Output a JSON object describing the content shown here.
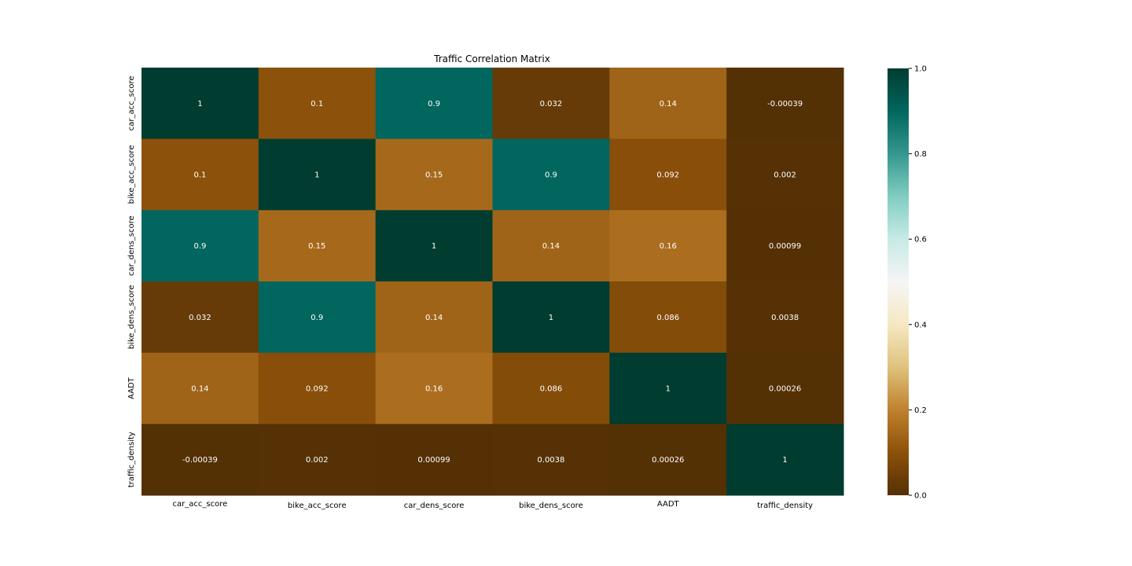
{
  "chart_data": {
    "type": "heatmap",
    "title": "Traffic Correlation Matrix",
    "xlabel": "",
    "ylabel": "",
    "x_categories": [
      "car_acc_score",
      "bike_acc_score",
      "car_dens_score",
      "bike_dens_score",
      "AADT",
      "traffic_density"
    ],
    "y_categories": [
      "car_acc_score",
      "bike_acc_score",
      "car_dens_score",
      "bike_dens_score",
      "AADT",
      "traffic_density"
    ],
    "values": [
      [
        1,
        0.1,
        0.9,
        0.032,
        0.14,
        -0.00039
      ],
      [
        0.1,
        1,
        0.15,
        0.9,
        0.092,
        0.002
      ],
      [
        0.9,
        0.15,
        1,
        0.14,
        0.16,
        0.00099
      ],
      [
        0.032,
        0.9,
        0.14,
        1,
        0.086,
        0.0038
      ],
      [
        0.14,
        0.092,
        0.16,
        0.086,
        1,
        0.00026
      ],
      [
        -0.00039,
        0.002,
        0.00099,
        0.0038,
        0.00026,
        1
      ]
    ],
    "annotations": [
      [
        "1",
        "0.1",
        "0.9",
        "0.032",
        "0.14",
        "-0.00039"
      ],
      [
        "0.1",
        "1",
        "0.15",
        "0.9",
        "0.092",
        "0.002"
      ],
      [
        "0.9",
        "0.15",
        "1",
        "0.14",
        "0.16",
        "0.00099"
      ],
      [
        "0.032",
        "0.9",
        "0.14",
        "1",
        "0.086",
        "0.0038"
      ],
      [
        "0.14",
        "0.092",
        "0.16",
        "0.086",
        "1",
        "0.00026"
      ],
      [
        "-0.00039",
        "0.002",
        "0.00099",
        "0.0038",
        "0.00026",
        "1"
      ]
    ],
    "colormap": "BrBG",
    "colorbar": {
      "range": [
        0,
        1
      ],
      "ticks": [
        "0.0",
        "0.2",
        "0.4",
        "0.6",
        "0.8",
        "1.0"
      ]
    },
    "annotation_text_color": "#ffffff"
  }
}
